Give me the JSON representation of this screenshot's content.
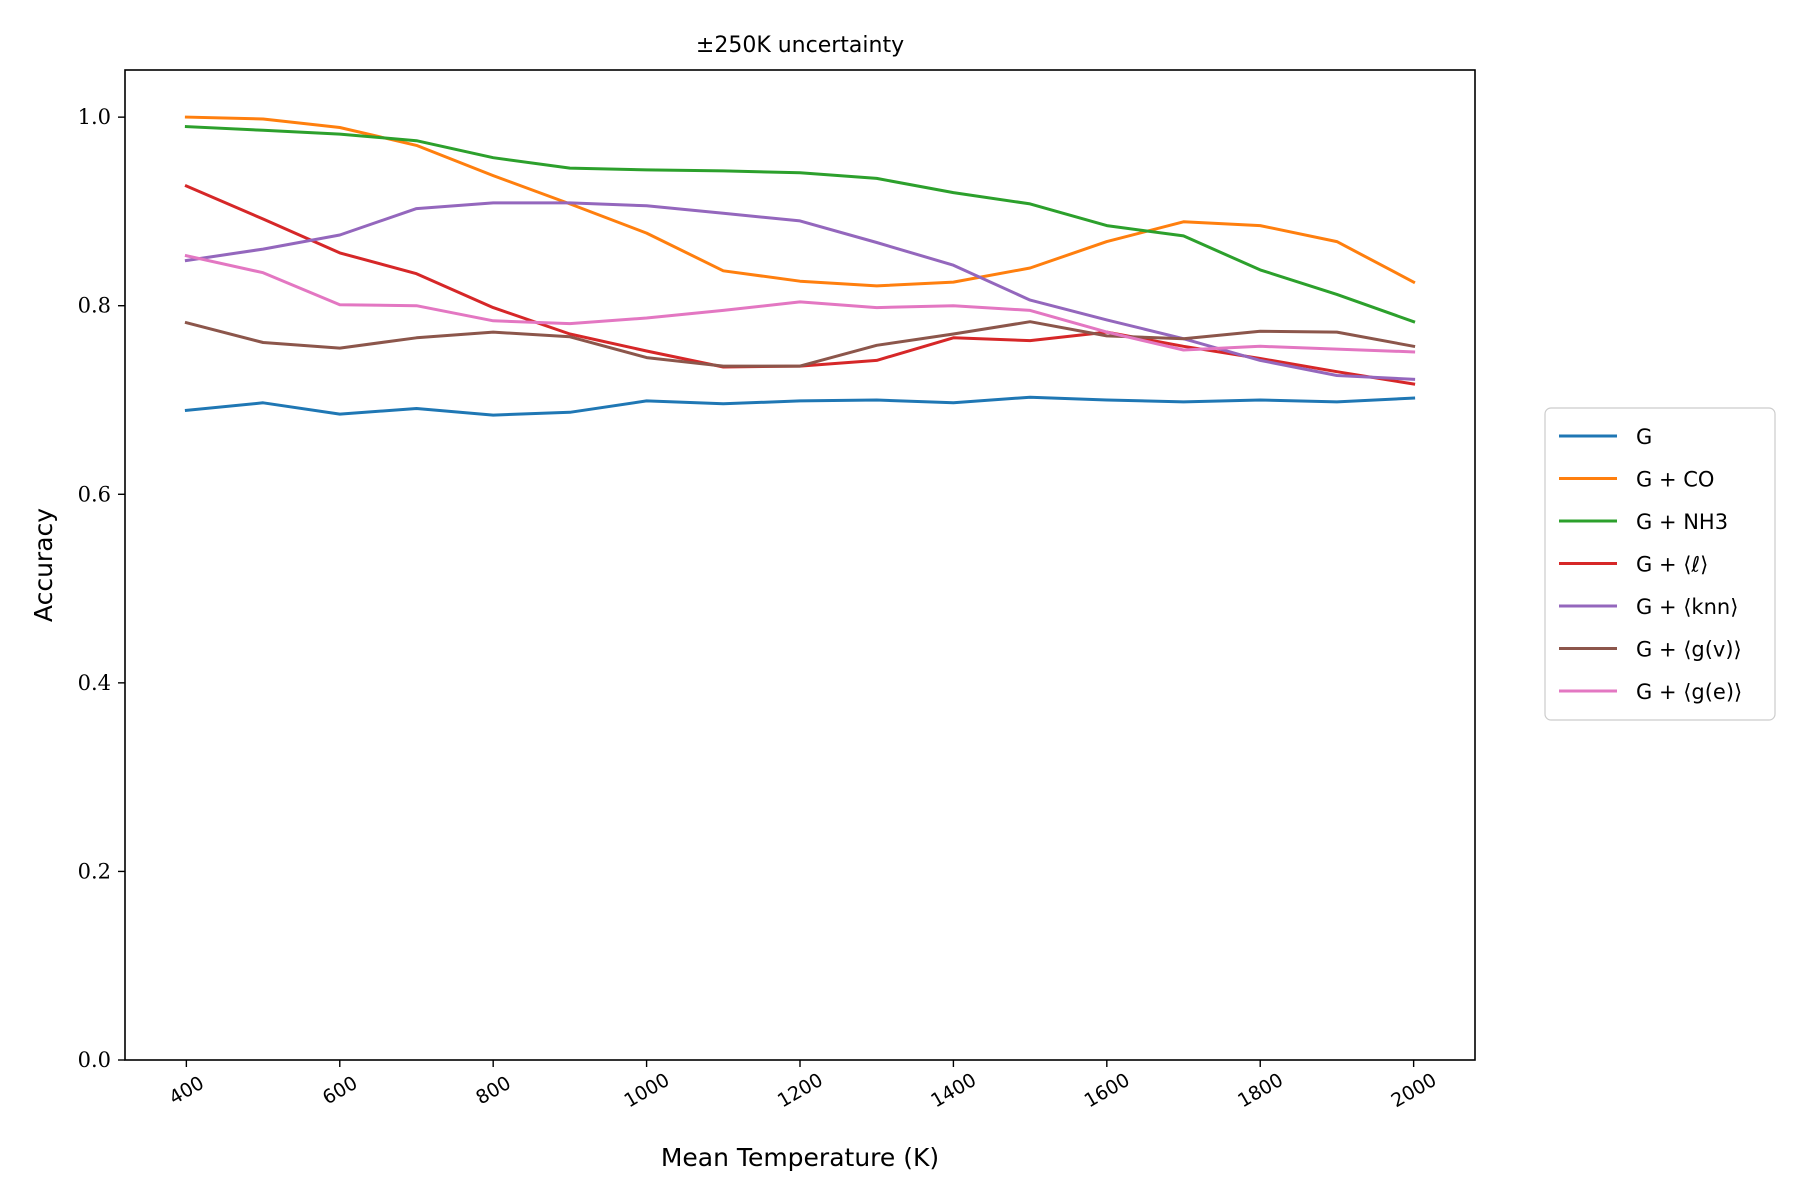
{
  "chart_data": {
    "type": "line",
    "title": "±250K uncertainty",
    "xlabel": "Mean Temperature (K)",
    "ylabel": "Accuracy",
    "x": [
      400,
      500,
      600,
      700,
      800,
      900,
      1000,
      1100,
      1200,
      1300,
      1400,
      1500,
      1600,
      1700,
      1800,
      1900,
      2000
    ],
    "xticks": [
      400,
      600,
      800,
      1000,
      1200,
      1400,
      1600,
      1800,
      2000
    ],
    "xtick_labels": [
      "400",
      "600",
      "800",
      "1000",
      "1200",
      "1400",
      "1600",
      "1800",
      "2000"
    ],
    "yticks": [
      0.0,
      0.2,
      0.4,
      0.6,
      0.8,
      1.0
    ],
    "ytick_labels": [
      "0.0",
      "0.2",
      "0.4",
      "0.6",
      "0.8",
      "1.0"
    ],
    "xlim": [
      320,
      2080
    ],
    "ylim": [
      0.0,
      1.05
    ],
    "grid": false,
    "legend_position": "outside-right",
    "series": [
      {
        "name": "G",
        "color": "#1f77b4",
        "values": [
          0.689,
          0.697,
          0.685,
          0.691,
          0.684,
          0.687,
          0.699,
          0.696,
          0.699,
          0.7,
          0.697,
          0.703,
          0.7,
          0.698,
          0.7,
          0.698,
          0.702
        ]
      },
      {
        "name": "G + CO",
        "color": "#ff7f0e",
        "values": [
          1.0,
          0.998,
          0.989,
          0.97,
          0.938,
          0.908,
          0.877,
          0.837,
          0.826,
          0.821,
          0.825,
          0.84,
          0.868,
          0.889,
          0.885,
          0.868,
          0.825
        ]
      },
      {
        "name": "G + NH3",
        "color": "#2ca02c",
        "values": [
          0.99,
          0.986,
          0.982,
          0.975,
          0.957,
          0.946,
          0.944,
          0.943,
          0.941,
          0.935,
          0.92,
          0.908,
          0.885,
          0.874,
          0.838,
          0.812,
          0.783
        ]
      },
      {
        "name": "G + ⟨ℓ⟩",
        "color": "#d62728",
        "values": [
          0.927,
          0.892,
          0.856,
          0.834,
          0.798,
          0.77,
          0.752,
          0.735,
          0.736,
          0.742,
          0.766,
          0.763,
          0.772,
          0.757,
          0.744,
          0.73,
          0.717
        ]
      },
      {
        "name": "G + ⟨knn⟩",
        "color": "#9467bd",
        "values": [
          0.848,
          0.86,
          0.875,
          0.903,
          0.909,
          0.909,
          0.906,
          0.898,
          0.89,
          0.867,
          0.843,
          0.806,
          0.785,
          0.765,
          0.742,
          0.726,
          0.722
        ]
      },
      {
        "name": "G + ⟨g(v)⟩",
        "color": "#8c564b",
        "values": [
          0.782,
          0.761,
          0.755,
          0.766,
          0.772,
          0.767,
          0.745,
          0.736,
          0.736,
          0.758,
          0.77,
          0.783,
          0.768,
          0.765,
          0.773,
          0.772,
          0.757
        ]
      },
      {
        "name": "G + ⟨g(e)⟩",
        "color": "#e377c2",
        "values": [
          0.853,
          0.835,
          0.801,
          0.8,
          0.784,
          0.781,
          0.787,
          0.795,
          0.804,
          0.798,
          0.8,
          0.795,
          0.772,
          0.753,
          0.757,
          0.754,
          0.751
        ]
      }
    ]
  }
}
